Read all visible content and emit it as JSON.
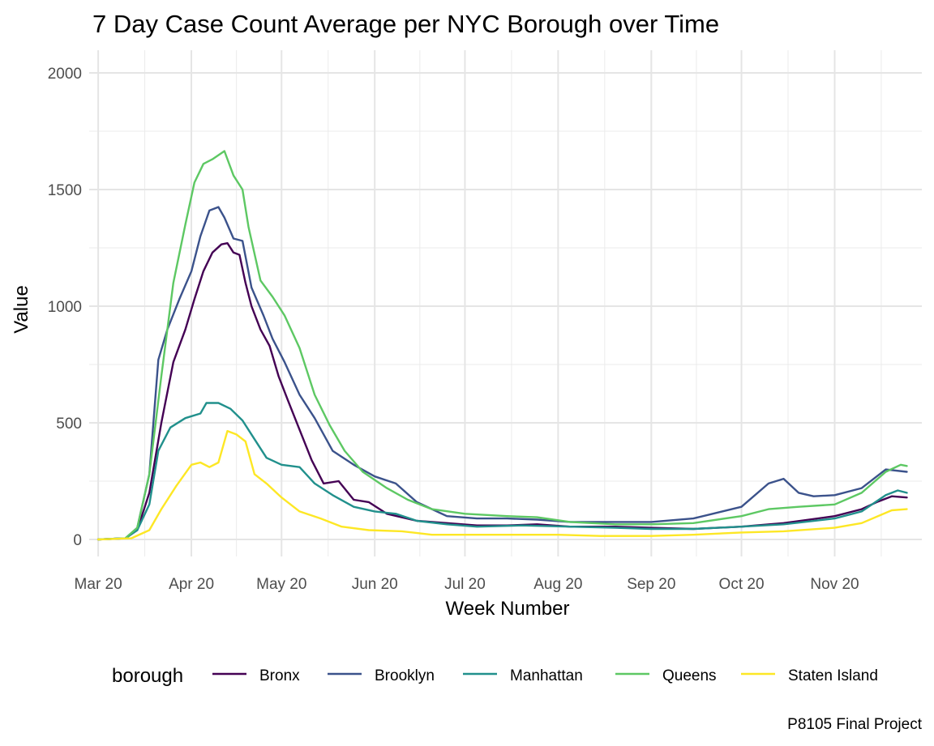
{
  "chart_data": {
    "type": "line",
    "title": "7 Day Case Count Average per NYC Borough over Time",
    "xlabel": "Week Number",
    "ylabel": "Value",
    "caption": "P8105 Final Project",
    "legend_title": "borough",
    "legend_position": "bottom",
    "ylim": [
      0,
      2000
    ],
    "xlim": [
      "2020-02-27",
      "2020-11-30"
    ],
    "y_ticks": [
      0,
      500,
      1000,
      1500,
      2000
    ],
    "x_ticks": [
      {
        "date": "2020-03-01",
        "label": "Mar 20"
      },
      {
        "date": "2020-04-01",
        "label": "Apr 20"
      },
      {
        "date": "2020-05-01",
        "label": "May 20"
      },
      {
        "date": "2020-06-01",
        "label": "Jun 20"
      },
      {
        "date": "2020-07-01",
        "label": "Jul 20"
      },
      {
        "date": "2020-08-01",
        "label": "Aug 20"
      },
      {
        "date": "2020-09-01",
        "label": "Sep 20"
      },
      {
        "date": "2020-10-01",
        "label": "Oct 20"
      },
      {
        "date": "2020-11-01",
        "label": "Nov 20"
      }
    ],
    "grid": true,
    "series": [
      {
        "name": "Bronx",
        "color": "#440154",
        "points": [
          [
            "2020-03-01",
            0
          ],
          [
            "2020-03-10",
            5
          ],
          [
            "2020-03-14",
            40
          ],
          [
            "2020-03-18",
            200
          ],
          [
            "2020-03-22",
            500
          ],
          [
            "2020-03-26",
            760
          ],
          [
            "2020-03-30",
            900
          ],
          [
            "2020-04-02",
            1030
          ],
          [
            "2020-04-05",
            1150
          ],
          [
            "2020-04-08",
            1230
          ],
          [
            "2020-04-11",
            1265
          ],
          [
            "2020-04-13",
            1270
          ],
          [
            "2020-04-15",
            1230
          ],
          [
            "2020-04-17",
            1220
          ],
          [
            "2020-04-19",
            1100
          ],
          [
            "2020-04-21",
            1000
          ],
          [
            "2020-04-24",
            900
          ],
          [
            "2020-04-27",
            830
          ],
          [
            "2020-04-30",
            700
          ],
          [
            "2020-05-03",
            600
          ],
          [
            "2020-05-07",
            470
          ],
          [
            "2020-05-11",
            340
          ],
          [
            "2020-05-15",
            240
          ],
          [
            "2020-05-20",
            250
          ],
          [
            "2020-05-25",
            170
          ],
          [
            "2020-05-30",
            160
          ],
          [
            "2020-06-05",
            110
          ],
          [
            "2020-06-15",
            80
          ],
          [
            "2020-06-25",
            70
          ],
          [
            "2020-07-05",
            60
          ],
          [
            "2020-07-15",
            60
          ],
          [
            "2020-07-25",
            65
          ],
          [
            "2020-08-05",
            55
          ],
          [
            "2020-08-20",
            55
          ],
          [
            "2020-09-01",
            50
          ],
          [
            "2020-09-15",
            45
          ],
          [
            "2020-10-01",
            55
          ],
          [
            "2020-10-15",
            70
          ],
          [
            "2020-11-01",
            100
          ],
          [
            "2020-11-10",
            130
          ],
          [
            "2020-11-15",
            160
          ],
          [
            "2020-11-20",
            185
          ],
          [
            "2020-11-25",
            180
          ]
        ]
      },
      {
        "name": "Brooklyn",
        "color": "#3b528b",
        "points": [
          [
            "2020-03-01",
            0
          ],
          [
            "2020-03-10",
            5
          ],
          [
            "2020-03-14",
            50
          ],
          [
            "2020-03-18",
            280
          ],
          [
            "2020-03-21",
            770
          ],
          [
            "2020-03-24",
            900
          ],
          [
            "2020-03-28",
            1030
          ],
          [
            "2020-04-01",
            1150
          ],
          [
            "2020-04-04",
            1300
          ],
          [
            "2020-04-07",
            1410
          ],
          [
            "2020-04-10",
            1425
          ],
          [
            "2020-04-12",
            1380
          ],
          [
            "2020-04-15",
            1290
          ],
          [
            "2020-04-18",
            1280
          ],
          [
            "2020-04-21",
            1080
          ],
          [
            "2020-04-25",
            960
          ],
          [
            "2020-04-28",
            860
          ],
          [
            "2020-05-02",
            760
          ],
          [
            "2020-05-07",
            620
          ],
          [
            "2020-05-12",
            520
          ],
          [
            "2020-05-18",
            380
          ],
          [
            "2020-05-25",
            320
          ],
          [
            "2020-06-01",
            270
          ],
          [
            "2020-06-08",
            240
          ],
          [
            "2020-06-15",
            160
          ],
          [
            "2020-06-25",
            100
          ],
          [
            "2020-07-05",
            90
          ],
          [
            "2020-07-15",
            90
          ],
          [
            "2020-07-25",
            85
          ],
          [
            "2020-08-05",
            75
          ],
          [
            "2020-08-20",
            75
          ],
          [
            "2020-09-01",
            75
          ],
          [
            "2020-09-15",
            90
          ],
          [
            "2020-10-01",
            140
          ],
          [
            "2020-10-10",
            240
          ],
          [
            "2020-10-15",
            260
          ],
          [
            "2020-10-20",
            200
          ],
          [
            "2020-10-25",
            185
          ],
          [
            "2020-11-01",
            190
          ],
          [
            "2020-11-10",
            220
          ],
          [
            "2020-11-18",
            300
          ],
          [
            "2020-11-25",
            290
          ]
        ]
      },
      {
        "name": "Manhattan",
        "color": "#21908c",
        "points": [
          [
            "2020-03-01",
            0
          ],
          [
            "2020-03-10",
            5
          ],
          [
            "2020-03-14",
            40
          ],
          [
            "2020-03-18",
            150
          ],
          [
            "2020-03-21",
            380
          ],
          [
            "2020-03-25",
            480
          ],
          [
            "2020-03-30",
            520
          ],
          [
            "2020-04-04",
            540
          ],
          [
            "2020-04-06",
            585
          ],
          [
            "2020-04-10",
            585
          ],
          [
            "2020-04-14",
            560
          ],
          [
            "2020-04-18",
            510
          ],
          [
            "2020-04-22",
            430
          ],
          [
            "2020-04-26",
            350
          ],
          [
            "2020-05-01",
            320
          ],
          [
            "2020-05-07",
            310
          ],
          [
            "2020-05-12",
            240
          ],
          [
            "2020-05-18",
            190
          ],
          [
            "2020-05-25",
            140
          ],
          [
            "2020-06-01",
            120
          ],
          [
            "2020-06-08",
            110
          ],
          [
            "2020-06-15",
            80
          ],
          [
            "2020-06-25",
            65
          ],
          [
            "2020-07-05",
            55
          ],
          [
            "2020-07-20",
            60
          ],
          [
            "2020-08-05",
            55
          ],
          [
            "2020-08-20",
            50
          ],
          [
            "2020-09-01",
            45
          ],
          [
            "2020-09-15",
            45
          ],
          [
            "2020-10-01",
            55
          ],
          [
            "2020-10-15",
            65
          ],
          [
            "2020-11-01",
            90
          ],
          [
            "2020-11-10",
            120
          ],
          [
            "2020-11-18",
            190
          ],
          [
            "2020-11-22",
            210
          ],
          [
            "2020-11-25",
            200
          ]
        ]
      },
      {
        "name": "Queens",
        "color": "#5dc863",
        "points": [
          [
            "2020-03-01",
            0
          ],
          [
            "2020-03-10",
            5
          ],
          [
            "2020-03-14",
            50
          ],
          [
            "2020-03-18",
            280
          ],
          [
            "2020-03-22",
            700
          ],
          [
            "2020-03-26",
            1100
          ],
          [
            "2020-03-30",
            1350
          ],
          [
            "2020-04-02",
            1530
          ],
          [
            "2020-04-05",
            1610
          ],
          [
            "2020-04-08",
            1630
          ],
          [
            "2020-04-12",
            1665
          ],
          [
            "2020-04-15",
            1560
          ],
          [
            "2020-04-18",
            1500
          ],
          [
            "2020-04-20",
            1340
          ],
          [
            "2020-04-24",
            1110
          ],
          [
            "2020-04-28",
            1040
          ],
          [
            "2020-05-02",
            960
          ],
          [
            "2020-05-07",
            820
          ],
          [
            "2020-05-12",
            620
          ],
          [
            "2020-05-17",
            490
          ],
          [
            "2020-05-22",
            380
          ],
          [
            "2020-05-28",
            290
          ],
          [
            "2020-06-05",
            220
          ],
          [
            "2020-06-12",
            170
          ],
          [
            "2020-06-20",
            130
          ],
          [
            "2020-07-01",
            110
          ],
          [
            "2020-07-15",
            100
          ],
          [
            "2020-07-25",
            95
          ],
          [
            "2020-08-05",
            75
          ],
          [
            "2020-08-20",
            65
          ],
          [
            "2020-09-01",
            65
          ],
          [
            "2020-09-15",
            70
          ],
          [
            "2020-10-01",
            100
          ],
          [
            "2020-10-10",
            130
          ],
          [
            "2020-10-20",
            140
          ],
          [
            "2020-11-01",
            150
          ],
          [
            "2020-11-10",
            200
          ],
          [
            "2020-11-18",
            290
          ],
          [
            "2020-11-23",
            320
          ],
          [
            "2020-11-25",
            315
          ]
        ]
      },
      {
        "name": "Staten Island",
        "color": "#fde725",
        "points": [
          [
            "2020-03-01",
            0
          ],
          [
            "2020-03-12",
            5
          ],
          [
            "2020-03-18",
            40
          ],
          [
            "2020-03-22",
            130
          ],
          [
            "2020-03-27",
            230
          ],
          [
            "2020-04-01",
            320
          ],
          [
            "2020-04-04",
            330
          ],
          [
            "2020-04-07",
            310
          ],
          [
            "2020-04-10",
            330
          ],
          [
            "2020-04-13",
            465
          ],
          [
            "2020-04-16",
            450
          ],
          [
            "2020-04-19",
            420
          ],
          [
            "2020-04-22",
            280
          ],
          [
            "2020-04-26",
            240
          ],
          [
            "2020-05-01",
            180
          ],
          [
            "2020-05-07",
            120
          ],
          [
            "2020-05-14",
            90
          ],
          [
            "2020-05-21",
            55
          ],
          [
            "2020-05-30",
            40
          ],
          [
            "2020-06-10",
            35
          ],
          [
            "2020-06-20",
            20
          ],
          [
            "2020-07-01",
            20
          ],
          [
            "2020-07-15",
            20
          ],
          [
            "2020-08-01",
            20
          ],
          [
            "2020-08-15",
            15
          ],
          [
            "2020-09-01",
            15
          ],
          [
            "2020-09-15",
            20
          ],
          [
            "2020-10-01",
            30
          ],
          [
            "2020-10-15",
            35
          ],
          [
            "2020-11-01",
            50
          ],
          [
            "2020-11-10",
            70
          ],
          [
            "2020-11-20",
            125
          ],
          [
            "2020-11-25",
            130
          ]
        ]
      }
    ]
  }
}
